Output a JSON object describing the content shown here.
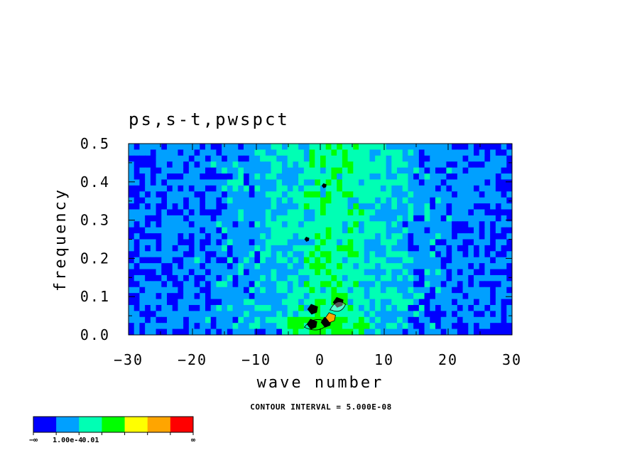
{
  "chart_data": {
    "type": "heatmap",
    "title": "ps,s-t,pwspct",
    "xlabel": "wave number",
    "ylabel": "frequency",
    "xlim": [
      -30,
      30
    ],
    "ylim": [
      0.0,
      0.5
    ],
    "x_ticks": [
      "−30",
      "−20",
      "−10",
      "0",
      "10",
      "20",
      "30"
    ],
    "y_ticks": [
      "0.0",
      "0.1",
      "0.2",
      "0.3",
      "0.4",
      "0.5"
    ],
    "x_tick_values": [
      -30,
      -20,
      -10,
      0,
      10,
      20,
      30
    ],
    "y_tick_values": [
      0.0,
      0.1,
      0.2,
      0.3,
      0.4,
      0.5
    ],
    "contour_label": "CONTOUR INTERVAL = 5.000E-08",
    "colorbar": {
      "colors": [
        "#0000ff",
        "#00a0ff",
        "#00ffb4",
        "#00ff00",
        "#ffff00",
        "#ffa500",
        "#ff0000"
      ],
      "labels": [
        "−∞",
        "1.00e-4",
        "0.01",
        "∞"
      ],
      "label_positions": [
        0,
        1.5,
        2.5,
        7
      ]
    },
    "grid": false,
    "legend": "bottom-left colorbar"
  }
}
